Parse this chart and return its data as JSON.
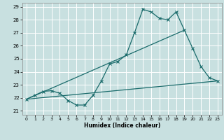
{
  "xlabel": "Humidex (Indice chaleur)",
  "ylabel": "",
  "xlim": [
    -0.5,
    23.5
  ],
  "ylim": [
    20.7,
    29.3
  ],
  "yticks": [
    21,
    22,
    23,
    24,
    25,
    26,
    27,
    28,
    29
  ],
  "xticks": [
    0,
    1,
    2,
    3,
    4,
    5,
    6,
    7,
    8,
    9,
    10,
    11,
    12,
    13,
    14,
    15,
    16,
    17,
    18,
    19,
    20,
    21,
    22,
    23
  ],
  "bg_color": "#c8e0e0",
  "grid_color": "#ffffff",
  "line_color": "#1a6b6b",
  "line1_x": [
    0,
    1,
    2,
    3,
    4,
    5,
    6,
    7,
    8,
    9,
    10,
    11,
    12,
    13,
    14,
    15,
    16,
    17,
    18,
    19,
    20,
    21,
    22,
    23
  ],
  "line1_y": [
    21.9,
    22.2,
    22.5,
    22.55,
    22.35,
    21.8,
    21.45,
    21.45,
    22.2,
    23.3,
    24.6,
    24.8,
    25.3,
    27.0,
    28.8,
    28.6,
    28.1,
    28.0,
    28.6,
    27.2,
    25.8,
    24.4,
    23.55,
    23.3
  ],
  "line2_x": [
    0,
    19
  ],
  "line2_y": [
    21.9,
    27.2
  ],
  "line3_x": [
    0,
    23
  ],
  "line3_y": [
    21.9,
    23.3
  ]
}
